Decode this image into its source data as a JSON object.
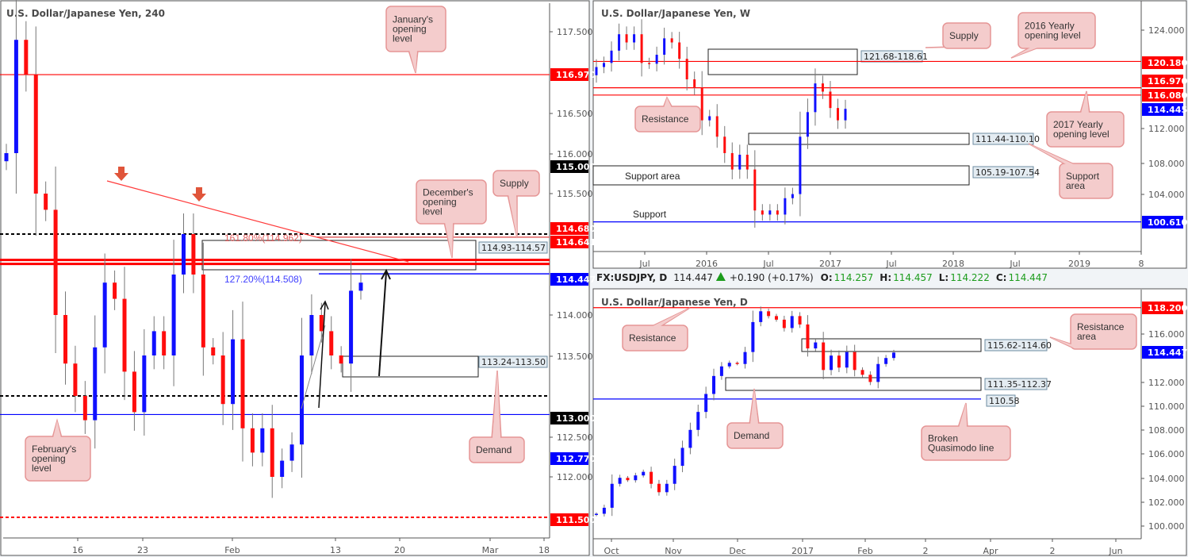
{
  "colors": {
    "bull": "#1010ff",
    "bear": "#ff0d0d",
    "callout_fill": "#f4cccc",
    "callout_stroke": "#e59595",
    "zone_label_fill": "#e4ecf2",
    "header_green": "#1c9c1c"
  },
  "header": {
    "symbol": "FX:USDJPY, D",
    "last": "114.447",
    "change_icon": "triangle-up-icon",
    "change": "+0.190 (+0.17%)",
    "o_label": "O:",
    "o": "114.257",
    "h_label": "H:",
    "h": "114.457",
    "l_label": "L:",
    "l": "114.222",
    "c_label": "C:",
    "c": "114.447"
  },
  "chart_data": [
    {
      "type": "candlestick",
      "title": "U.S. Dollar/Japanese Yen, 240",
      "x_ticks": [
        "16",
        "23",
        "Feb",
        "13",
        "20",
        "Mar",
        "18"
      ],
      "y_ticks": [
        "117.500",
        "116.500",
        "116.000",
        "115.500",
        "114.000",
        "113.500",
        "112.500",
        "112.000"
      ],
      "ylim": [
        111.2,
        117.8
      ],
      "closes": [
        116.0,
        117.4,
        116.97,
        115.5,
        115.3,
        114.0,
        113.4,
        113.0,
        112.7,
        113.6,
        114.4,
        114.2,
        113.3,
        112.8,
        113.5,
        113.8,
        113.5,
        114.5,
        115.0,
        114.5,
        113.6,
        113.5,
        112.9,
        113.7,
        112.6,
        112.3,
        112.6,
        112.0,
        112.2,
        112.4,
        113.5,
        114.0,
        113.8,
        113.5,
        113.4,
        114.3,
        114.4
      ],
      "price_labels": [
        {
          "text": "116.970",
          "color": "#ff0000"
        },
        {
          "text": "115.000",
          "color": "#000000"
        },
        {
          "text": "114.680",
          "color": "#ff0000"
        },
        {
          "text": "114.641",
          "color": "#ff0000"
        },
        {
          "text": "114.447",
          "color": "#0000ff"
        },
        {
          "text": "113.000",
          "color": "#000000"
        },
        {
          "text": "112.770",
          "color": "#0000ff"
        },
        {
          "text": "111.500",
          "color": "#ff0000"
        }
      ],
      "levels": [
        {
          "price": 116.97,
          "color": "#ff0000",
          "style": "solid"
        },
        {
          "price": 115.0,
          "color": "#000000",
          "style": "dashed"
        },
        {
          "price": 114.68,
          "color": "#ff0000",
          "style": "double-thick"
        },
        {
          "price": 113.0,
          "color": "#000000",
          "style": "dashed"
        },
        {
          "price": 112.77,
          "color": "#0000ff",
          "style": "solid"
        },
        {
          "price": 111.5,
          "color": "#ff0000",
          "style": "dashed"
        }
      ],
      "fib": [
        {
          "text": "161.80%(114.962)",
          "price": 114.962,
          "color": "#e06060"
        },
        {
          "text": "127.20%(114.508)",
          "price": 114.508,
          "color": "#4040ff"
        }
      ],
      "zones": [
        {
          "text": "114.93-114.57"
        },
        {
          "text": "113.24-113.50"
        }
      ],
      "callouts": [
        {
          "lines": [
            "January's",
            "opening",
            "level"
          ]
        },
        {
          "lines": [
            "Supply"
          ]
        },
        {
          "lines": [
            "December's",
            "opening",
            "level"
          ]
        },
        {
          "lines": [
            "Demand"
          ]
        },
        {
          "lines": [
            "February's",
            "opening",
            "level"
          ]
        }
      ]
    },
    {
      "type": "candlestick",
      "title": "U.S. Dollar/Japanese Yen, W",
      "x_ticks": [
        "Jul",
        "2016",
        "Jul",
        "2017",
        "Jul",
        "2018",
        "Jul",
        "2019",
        "8"
      ],
      "y_ticks": [
        "124.000",
        "112.000",
        "108.000",
        "104.000"
      ],
      "ylim": [
        97.5,
        127.5
      ],
      "closes": [
        119.5,
        120.0,
        121.5,
        123.5,
        122.5,
        123.5,
        120.0,
        119.9,
        121.0,
        123.0,
        122.5,
        120.5,
        118.0,
        117.0,
        113.0,
        113.5,
        111.0,
        109.0,
        107.0,
        108.8,
        107.0,
        102.0,
        101.5,
        102.0,
        101.5,
        103.5,
        104.0,
        111.0,
        114.0,
        117.5,
        116.5,
        114.5,
        113.0,
        114.4
      ],
      "price_labels": [
        {
          "text": "120.180",
          "color": "#ff0000"
        },
        {
          "text": "116.970",
          "color": "#ff0000"
        },
        {
          "text": "116.080",
          "color": "#ff0000"
        },
        {
          "text": "114.445",
          "color": "#0000ff"
        },
        {
          "text": "100.610",
          "color": "#0000ff"
        }
      ],
      "levels": [
        {
          "price": 120.18,
          "color": "#ff0000",
          "style": "solid"
        },
        {
          "price": 116.97,
          "color": "#ff0000",
          "style": "solid"
        },
        {
          "price": 116.08,
          "color": "#ff0000",
          "style": "solid"
        },
        {
          "price": 100.61,
          "color": "#0000ff",
          "style": "solid"
        }
      ],
      "zones": [
        {
          "text": "121.68-118.61"
        },
        {
          "text": "111.44-110.10"
        },
        {
          "text": "105.19-107.54"
        }
      ],
      "texts": [
        "Support area",
        "Support"
      ],
      "callouts": [
        {
          "lines": [
            "Supply"
          ]
        },
        {
          "lines": [
            "2016 Yearly",
            "opening level"
          ]
        },
        {
          "lines": [
            "Resistance"
          ]
        },
        {
          "lines": [
            "2017 Yearly",
            "opening level"
          ]
        },
        {
          "lines": [
            "Support",
            "area"
          ]
        }
      ]
    },
    {
      "type": "candlestick",
      "title": "U.S. Dollar/Japanese Yen, D",
      "x_ticks": [
        "Oct",
        "Nov",
        "Dec",
        "2017",
        "Feb",
        "2",
        "Apr",
        "2",
        "Jun"
      ],
      "y_ticks": [
        "116.000",
        "112.000",
        "110.000",
        "108.000",
        "106.000",
        "104.000",
        "102.000",
        "100.000"
      ],
      "ylim": [
        98.9,
        119.5
      ],
      "closes": [
        101.0,
        101.5,
        103.5,
        104.0,
        103.8,
        104.2,
        104.5,
        103.5,
        102.8,
        103.5,
        105.0,
        106.5,
        108.0,
        109.5,
        111.0,
        112.5,
        113.3,
        113.6,
        113.5,
        114.5,
        117.0,
        117.9,
        117.5,
        117.2,
        116.5,
        117.5,
        116.8,
        114.8,
        115.3,
        113.0,
        114.2,
        113.2,
        114.5,
        113.0,
        112.6,
        112.0,
        113.5,
        114.0,
        114.45
      ],
      "price_labels": [
        {
          "text": "118.200",
          "color": "#ff0000"
        },
        {
          "text": "114.447",
          "color": "#0000ff"
        }
      ],
      "levels": [
        {
          "price": 118.2,
          "color": "#ff0000",
          "style": "solid"
        },
        {
          "price": 110.58,
          "color": "#0000ff",
          "style": "solid"
        }
      ],
      "zones": [
        {
          "text": "115.62-114.60"
        },
        {
          "text": "111.35-112.37"
        },
        {
          "text": "110.58"
        }
      ],
      "callouts": [
        {
          "lines": [
            "Resistance"
          ]
        },
        {
          "lines": [
            "Resistance",
            "area"
          ]
        },
        {
          "lines": [
            "Demand"
          ]
        },
        {
          "lines": [
            "Broken",
            "Quasimodo line"
          ]
        }
      ]
    }
  ]
}
